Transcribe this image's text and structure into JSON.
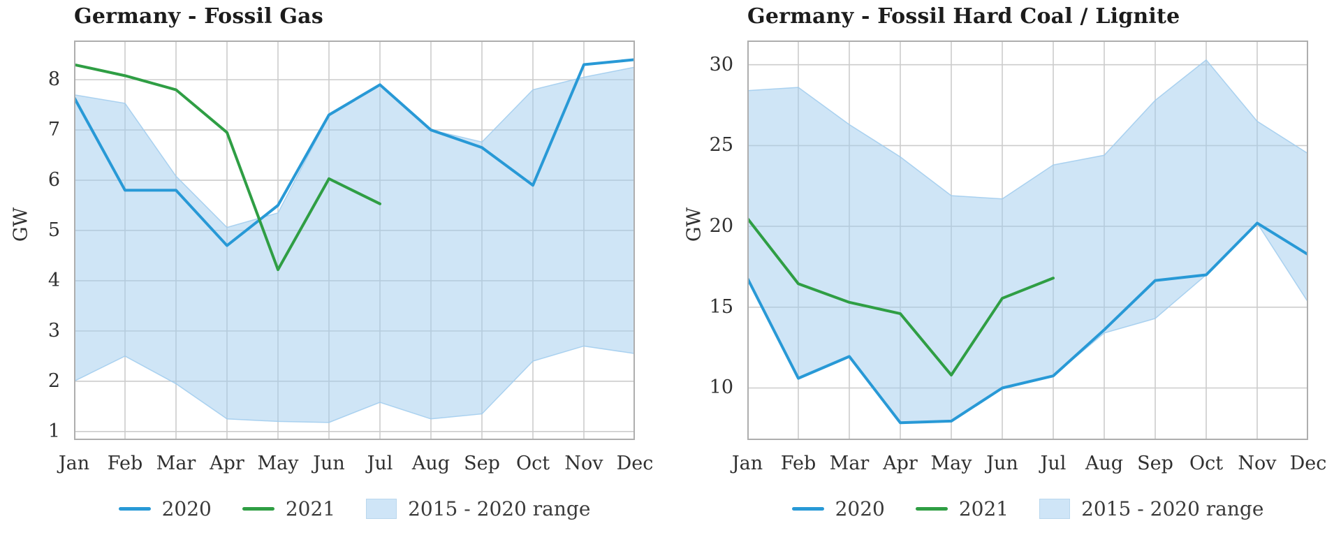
{
  "figure": {
    "background": "#ffffff",
    "grid_color": "#cccccc",
    "spine_color": "#aeaeae"
  },
  "chart_data": [
    {
      "type": "line",
      "title": "Germany - Fossil Gas",
      "ylabel": "GW",
      "categories": [
        "Jan",
        "Feb",
        "Mar",
        "Apr",
        "May",
        "Jun",
        "Jul",
        "Aug",
        "Sep",
        "Oct",
        "Nov",
        "Dec"
      ],
      "yticks": [
        1,
        2,
        3,
        4,
        5,
        6,
        7,
        8
      ],
      "ylim": [
        0.83,
        8.78
      ],
      "grid": true,
      "legend_position": "bottom-center",
      "series": [
        {
          "name": "2020",
          "color": "#2899d6",
          "values": [
            7.65,
            5.8,
            5.8,
            4.7,
            5.5,
            7.3,
            7.9,
            7.0,
            6.65,
            5.9,
            8.3,
            8.4
          ]
        },
        {
          "name": "2021",
          "color": "#2f9e44",
          "values": [
            8.3,
            8.08,
            7.8,
            6.95,
            4.22,
            6.03,
            5.53
          ]
        }
      ],
      "band": {
        "name": "2015 - 2020 range",
        "fill_color": "#9fcbed",
        "display_color": "#cfe5f7",
        "high": [
          7.7,
          7.53,
          6.08,
          5.06,
          5.35,
          7.28,
          7.9,
          7.0,
          6.76,
          7.8,
          8.05,
          8.25
        ],
        "low": [
          2.0,
          2.5,
          1.95,
          1.25,
          1.2,
          1.18,
          1.58,
          1.25,
          1.35,
          2.4,
          2.7,
          2.55
        ]
      }
    },
    {
      "type": "line",
      "title": "Germany - Fossil Hard Coal / Lignite",
      "ylabel": "GW",
      "categories": [
        "Jan",
        "Feb",
        "Mar",
        "Apr",
        "May",
        "Jun",
        "Jul",
        "Aug",
        "Sep",
        "Oct",
        "Nov",
        "Dec"
      ],
      "yticks": [
        10,
        15,
        20,
        25,
        30
      ],
      "ylim": [
        6.78,
        31.5
      ],
      "grid": true,
      "legend_position": "bottom-center",
      "series": [
        {
          "name": "2020",
          "color": "#2899d6",
          "values": [
            16.8,
            10.6,
            11.95,
            7.85,
            7.95,
            10.0,
            10.75,
            13.6,
            16.65,
            17.0,
            20.2,
            18.25
          ]
        },
        {
          "name": "2021",
          "color": "#2f9e44",
          "values": [
            20.5,
            16.45,
            15.3,
            14.6,
            10.8,
            15.55,
            16.8
          ]
        }
      ],
      "band": {
        "name": "2015 - 2020 range",
        "fill_color": "#9fcbed",
        "display_color": "#cfe5f7",
        "high": [
          28.4,
          28.6,
          26.3,
          24.3,
          21.9,
          21.7,
          23.8,
          24.4,
          27.8,
          30.3,
          26.5,
          24.5
        ],
        "low": [
          16.8,
          10.6,
          11.95,
          7.85,
          7.95,
          10.0,
          10.75,
          13.4,
          14.3,
          17.0,
          20.2,
          15.3
        ]
      }
    }
  ]
}
